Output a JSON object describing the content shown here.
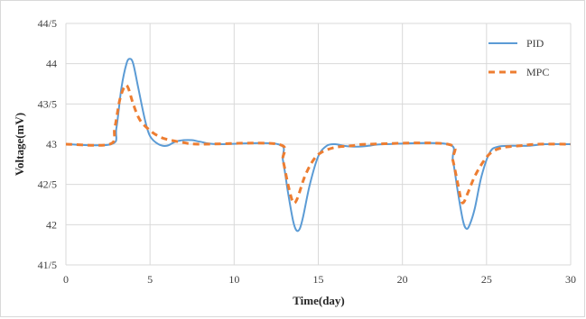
{
  "chart_data": {
    "type": "line",
    "xlabel": "Time(day)",
    "ylabel": "Voltage(mV)",
    "xlim": [
      0,
      30
    ],
    "ylim": [
      41.5,
      44.5
    ],
    "x_ticks": [
      0,
      5,
      10,
      15,
      20,
      25,
      30
    ],
    "x_tick_labels": [
      "0",
      "5",
      "10",
      "15",
      "20",
      "25",
      "30"
    ],
    "y_ticks": [
      41.5,
      42,
      42.5,
      43,
      43.5,
      44,
      44.5
    ],
    "y_tick_labels": [
      "41/5",
      "42",
      "42/5",
      "43",
      "43/5",
      "44",
      "44/5"
    ],
    "grid": true,
    "legend_position": "top-right",
    "series": [
      {
        "name": "PID",
        "color": "#5b9bd5",
        "style": "solid",
        "points": [
          [
            0,
            43.0
          ],
          [
            2.7,
            43.0
          ],
          [
            3.0,
            43.2
          ],
          [
            3.3,
            43.7
          ],
          [
            3.6,
            44.0
          ],
          [
            3.8,
            44.06
          ],
          [
            4.0,
            44.0
          ],
          [
            4.3,
            43.7
          ],
          [
            4.7,
            43.3
          ],
          [
            5.0,
            43.1
          ],
          [
            5.5,
            43.0
          ],
          [
            6.0,
            42.98
          ],
          [
            6.5,
            43.03
          ],
          [
            7.0,
            43.05
          ],
          [
            7.5,
            43.05
          ],
          [
            8.0,
            43.03
          ],
          [
            9.0,
            43.0
          ],
          [
            12.6,
            43.0
          ],
          [
            12.9,
            42.8
          ],
          [
            13.2,
            42.4
          ],
          [
            13.5,
            42.05
          ],
          [
            13.7,
            41.93
          ],
          [
            13.9,
            41.95
          ],
          [
            14.1,
            42.1
          ],
          [
            14.5,
            42.5
          ],
          [
            15.0,
            42.85
          ],
          [
            15.5,
            42.98
          ],
          [
            16.0,
            43.0
          ],
          [
            16.5,
            42.98
          ],
          [
            17.0,
            42.97
          ],
          [
            17.5,
            42.97
          ],
          [
            18.0,
            42.98
          ],
          [
            19.0,
            43.0
          ],
          [
            22.7,
            43.0
          ],
          [
            23.0,
            42.8
          ],
          [
            23.3,
            42.4
          ],
          [
            23.6,
            42.05
          ],
          [
            23.8,
            41.95
          ],
          [
            24.0,
            42.0
          ],
          [
            24.3,
            42.2
          ],
          [
            24.7,
            42.6
          ],
          [
            25.2,
            42.9
          ],
          [
            25.7,
            42.97
          ],
          [
            26.5,
            42.98
          ],
          [
            27.5,
            42.98
          ],
          [
            28.5,
            43.0
          ],
          [
            30,
            43.0
          ]
        ]
      },
      {
        "name": "MPC",
        "color": "#ed7d31",
        "style": "dashed",
        "points": [
          [
            0,
            43.0
          ],
          [
            2.6,
            43.0
          ],
          [
            2.9,
            43.2
          ],
          [
            3.2,
            43.55
          ],
          [
            3.5,
            43.72
          ],
          [
            3.7,
            43.7
          ],
          [
            4.0,
            43.5
          ],
          [
            4.4,
            43.3
          ],
          [
            5.0,
            43.17
          ],
          [
            5.5,
            43.1
          ],
          [
            6.0,
            43.06
          ],
          [
            7.0,
            43.02
          ],
          [
            8.0,
            43.0
          ],
          [
            12.6,
            43.0
          ],
          [
            12.9,
            42.8
          ],
          [
            13.2,
            42.5
          ],
          [
            13.45,
            42.3
          ],
          [
            13.6,
            42.27
          ],
          [
            13.8,
            42.35
          ],
          [
            14.2,
            42.6
          ],
          [
            14.7,
            42.8
          ],
          [
            15.2,
            42.9
          ],
          [
            16.0,
            42.96
          ],
          [
            17.0,
            42.98
          ],
          [
            18.0,
            43.0
          ],
          [
            22.7,
            43.0
          ],
          [
            23.0,
            42.8
          ],
          [
            23.3,
            42.5
          ],
          [
            23.5,
            42.3
          ],
          [
            23.65,
            42.28
          ],
          [
            23.9,
            42.4
          ],
          [
            24.3,
            42.6
          ],
          [
            24.8,
            42.78
          ],
          [
            25.3,
            42.9
          ],
          [
            26.0,
            42.96
          ],
          [
            27.0,
            42.98
          ],
          [
            28.0,
            43.0
          ],
          [
            30,
            43.0
          ]
        ]
      }
    ]
  }
}
